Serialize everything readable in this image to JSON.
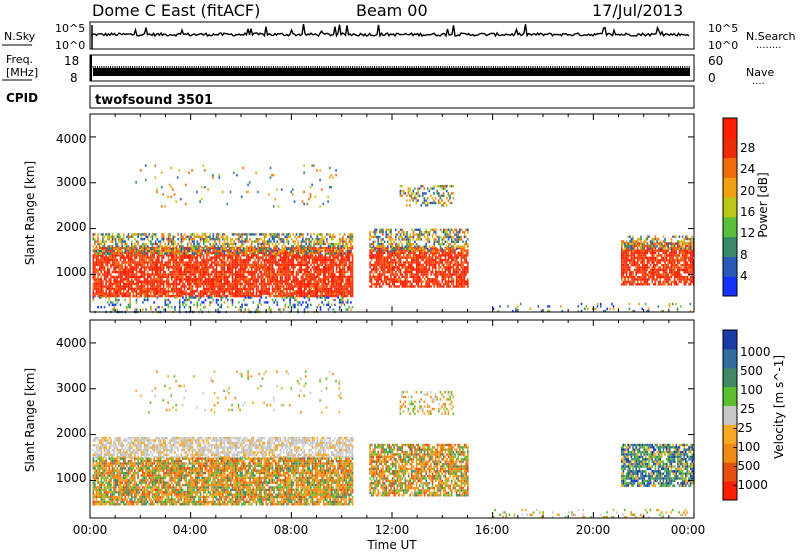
{
  "header": {
    "station": "Dome C East (fitACF)",
    "beam": "Beam 00",
    "date": "17/Jul/2013"
  },
  "sky_panel": {
    "left_label": "N.Sky",
    "left_ticks": [
      "10^5",
      "10^0"
    ],
    "right_ticks": [
      "10^5",
      "10^0"
    ],
    "right_label": "N.Search",
    "right_dots": "........"
  },
  "freq_panel": {
    "label_1": "Freq.",
    "label_2": "[MHz]",
    "left_ticks": [
      "18",
      "8"
    ],
    "right_ticks": [
      "60",
      "0"
    ],
    "right_label": "Nave",
    "right_dots": "...."
  },
  "cpid_panel": {
    "label": "CPID",
    "program": "twofsound 3501"
  },
  "x_axis": {
    "title": "Time UT",
    "ticks": [
      "00:00",
      "04:00",
      "08:00",
      "12:00",
      "16:00",
      "20:00",
      "00:00"
    ]
  },
  "chart_data": [
    {
      "type": "heatmap",
      "name": "power",
      "ylabel": "Slant Range [km]",
      "yticks": [
        "1000",
        "2000",
        "3000",
        "4000"
      ],
      "ylim": [
        180,
        4500
      ],
      "xlim": [
        0,
        24
      ],
      "colorbar": {
        "label": "Power [dB]",
        "ticks": [
          "4",
          "8",
          "12",
          "16",
          "20",
          "24",
          "28"
        ],
        "colors": [
          "#1530ff",
          "#2a5ab8",
          "#3a8a6a",
          "#5abf3a",
          "#b9c814",
          "#f0a012",
          "#f06a0c",
          "#ee2a06",
          "#ff1e00"
        ]
      },
      "regions": [
        {
          "t": [
            0.0,
            10.4
          ],
          "r": [
            500,
            1650
          ],
          "level": "high"
        },
        {
          "t": [
            0.0,
            10.4
          ],
          "r": [
            1650,
            1950
          ],
          "level": "mid"
        },
        {
          "t": [
            0.0,
            10.4
          ],
          "r": [
            200,
            500
          ],
          "level": "low"
        },
        {
          "t": [
            11.1,
            15.0
          ],
          "r": [
            700,
            1600
          ],
          "level": "high"
        },
        {
          "t": [
            11.1,
            15.0
          ],
          "r": [
            1600,
            1950
          ],
          "level": "mid"
        },
        {
          "t": [
            12.3,
            14.4
          ],
          "r": [
            2500,
            2950
          ],
          "level": "mid"
        },
        {
          "t": [
            21.1,
            24.0
          ],
          "r": [
            800,
            1750
          ],
          "level": "high"
        },
        {
          "t": [
            16.0,
            24.0
          ],
          "r": [
            200,
            400
          ],
          "level": "low"
        }
      ]
    },
    {
      "type": "heatmap",
      "name": "velocity",
      "ylabel": "Slant Range [km]",
      "yticks": [
        "1000",
        "2000",
        "3000",
        "4000"
      ],
      "ylim": [
        180,
        4500
      ],
      "xlim": [
        0,
        24
      ],
      "colorbar": {
        "label": "Velocity [m s^-1]",
        "ticks": [
          "1000",
          "500",
          "100",
          "25",
          "-25",
          "-100",
          "-500",
          "-1000"
        ],
        "colors": [
          "#1a3ca8",
          "#2f6e9e",
          "#3f8a66",
          "#5bbf2e",
          "#c8c8c8",
          "#f5a820",
          "#f08a14",
          "#e85010",
          "#ff1e00"
        ]
      },
      "regions": [
        {
          "t": [
            0.0,
            10.4
          ],
          "r": [
            1500,
            1950
          ],
          "level": "grey"
        },
        {
          "t": [
            0.0,
            10.4
          ],
          "r": [
            500,
            1500
          ],
          "level": "orange"
        },
        {
          "t": [
            11.1,
            15.0
          ],
          "r": [
            700,
            1800
          ],
          "level": "orange"
        },
        {
          "t": [
            21.1,
            24.0
          ],
          "r": [
            900,
            1800
          ],
          "level": "blue-green"
        },
        {
          "t": [
            16.0,
            24.0
          ],
          "r": [
            200,
            400
          ],
          "level": "light"
        }
      ]
    }
  ]
}
